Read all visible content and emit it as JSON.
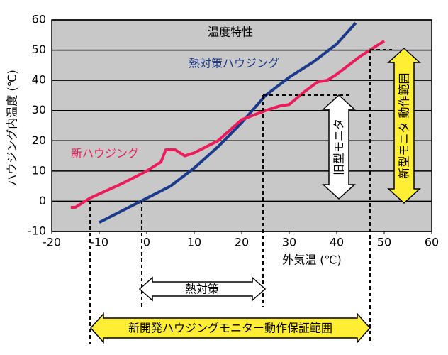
{
  "chart_data": {
    "type": "line",
    "title": "温度特性",
    "xlabel": "外気温 (℃)",
    "ylabel": "ハウジング内温度 (℃)",
    "xlim": [
      -20,
      60
    ],
    "xticks": [
      -20,
      -10,
      0,
      10,
      20,
      30,
      40,
      50,
      60
    ],
    "ylim": [
      -10,
      60
    ],
    "yticks": [
      -10,
      0,
      10,
      20,
      30,
      40,
      50,
      60
    ],
    "grid": true,
    "series": [
      {
        "name": "熱対策ハウジング",
        "color": "#1c3a8c",
        "x": [
          -10,
          0,
          5,
          10,
          15,
          20,
          25,
          30,
          35,
          40,
          44
        ],
        "values": [
          -7,
          1,
          5,
          11,
          18,
          26,
          35,
          41,
          46,
          52,
          59
        ]
      },
      {
        "name": "新ハウジング",
        "color": "#ec1c5c",
        "x": [
          -16,
          -15,
          -12,
          -5,
          0,
          3,
          4,
          6,
          8,
          10,
          15,
          20,
          25,
          28,
          30,
          33,
          36,
          38,
          40,
          45,
          48,
          50
        ],
        "values": [
          -2,
          -2,
          1,
          6,
          10,
          13,
          17,
          17,
          15,
          16,
          20,
          27,
          30,
          31.5,
          32,
          36,
          39.5,
          40,
          42,
          48,
          51,
          53
        ]
      }
    ],
    "annotations": [
      "熱対策",
      "新開発ハウジングモニター動作保証範囲",
      "旧型モニタ",
      "新型モニタ 動作範囲"
    ]
  }
}
